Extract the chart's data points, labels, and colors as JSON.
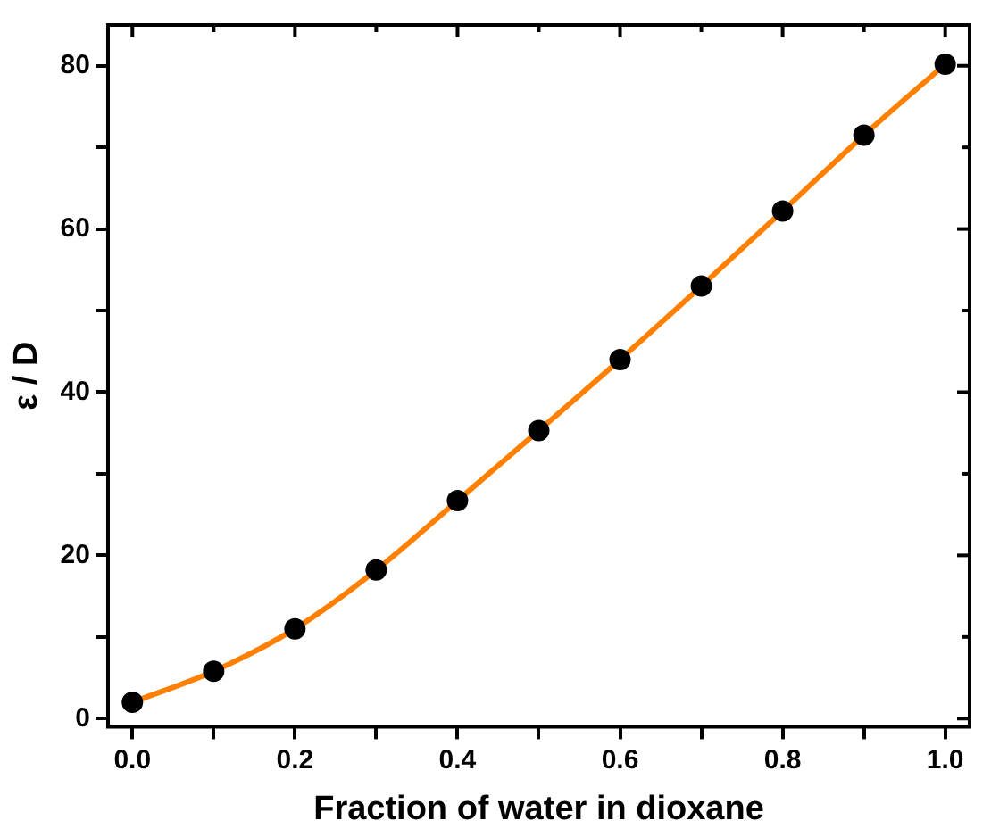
{
  "chart_data": {
    "type": "line",
    "xlabel": "Fraction of water in dioxane",
    "ylabel": "ε / D",
    "x": [
      0,
      0.1,
      0.2,
      0.3,
      0.4,
      0.5,
      0.6,
      0.7,
      0.8,
      0.9,
      1.0
    ],
    "series": [
      {
        "color": "#ff8000",
        "marker": "none",
        "values": [
          2.0,
          5.8,
          11.0,
          18.2,
          26.7,
          35.3,
          44.0,
          53.0,
          62.2,
          71.5,
          80.2
        ]
      },
      {
        "type": "scatter",
        "color": "#000000",
        "marker": "circle",
        "values": [
          2.0,
          5.8,
          11.0,
          18.2,
          26.7,
          35.3,
          44.0,
          53.0,
          62.2,
          71.5,
          80.2
        ]
      }
    ],
    "xlim": [
      -0.03,
      1.03
    ],
    "xticks": [
      {
        "value": 0,
        "label": "0.0"
      },
      {
        "value": 0.1,
        "label": null
      },
      {
        "value": 0.2,
        "label": "0.2"
      },
      {
        "value": 0.3,
        "label": null
      },
      {
        "value": 0.4,
        "label": "0.4"
      },
      {
        "value": 0.5,
        "label": null
      },
      {
        "value": 0.6,
        "label": "0.6"
      },
      {
        "value": 0.7,
        "label": null
      },
      {
        "value": 0.8,
        "label": "0.8"
      },
      {
        "value": 0.9,
        "label": null
      },
      {
        "value": 1.0,
        "label": "1.0"
      }
    ],
    "ylim": [
      -1,
      85
    ],
    "yticks": [
      0,
      {
        "value": 10,
        "label": null
      },
      20,
      {
        "value": 30,
        "label": null
      },
      40,
      {
        "value": 50,
        "label": null
      },
      60,
      {
        "value": 70,
        "label": null
      },
      80
    ],
    "grid": false,
    "legend": false
  }
}
